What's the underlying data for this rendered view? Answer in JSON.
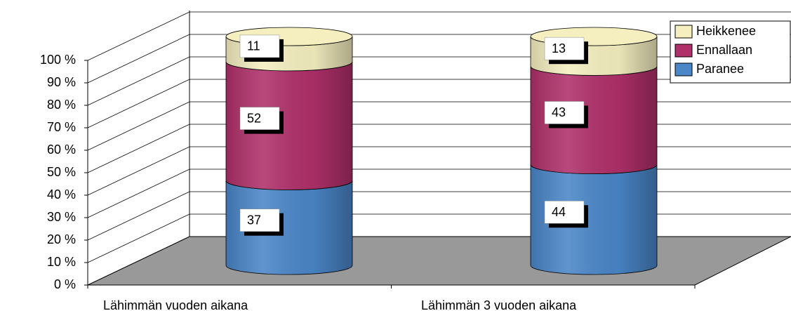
{
  "chart_data": {
    "type": "stacked-cylinder",
    "categories": [
      "Lähimmän vuoden aikana",
      "Lähimmän 3 vuoden aikana"
    ],
    "series": [
      {
        "name": "Paranee",
        "color": "#4a86c8",
        "values": [
          37,
          44
        ]
      },
      {
        "name": "Ennallaan",
        "color": "#b0306a",
        "values": [
          52,
          43
        ]
      },
      {
        "name": "Heikkenee",
        "color": "#f5efc0",
        "values": [
          11,
          13
        ]
      }
    ],
    "ylim": [
      0,
      100
    ],
    "yticks": [
      {
        "value": 0,
        "label": "0 %"
      },
      {
        "value": 10,
        "label": "10 %"
      },
      {
        "value": 20,
        "label": "20 %"
      },
      {
        "value": 30,
        "label": "30 %"
      },
      {
        "value": 40,
        "label": "40 %"
      },
      {
        "value": 50,
        "label": "50 %"
      },
      {
        "value": 60,
        "label": "60 %"
      },
      {
        "value": 70,
        "label": "70 %"
      },
      {
        "value": 80,
        "label": "80 %"
      },
      {
        "value": 90,
        "label": "90 %"
      },
      {
        "value": 100,
        "label": "100 %"
      }
    ],
    "grid": true,
    "legend": "top-right"
  }
}
